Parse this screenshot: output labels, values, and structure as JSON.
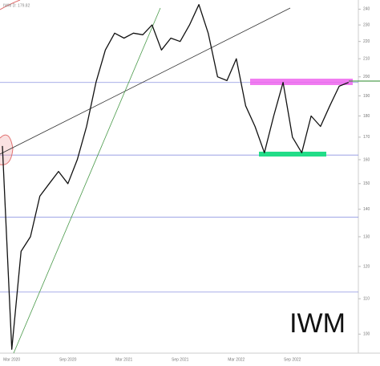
{
  "chart_data": {
    "type": "line",
    "title": "IWM",
    "header": "IWM D: 179.82",
    "categories": [
      null,
      "Mar 2020",
      null,
      null,
      null,
      null,
      null,
      "Sep 2020",
      null,
      null,
      null,
      null,
      null,
      "Mar 2021",
      null,
      null,
      null,
      null,
      null,
      "Sep 2021",
      null,
      null,
      null,
      null,
      null,
      "Mar 2022",
      null,
      null,
      null,
      null,
      null,
      "Sep 2022",
      null,
      null,
      null,
      null,
      null,
      null
    ],
    "series": [
      {
        "name": "IWM",
        "color": "#111111",
        "values": [
          166,
          96,
          125,
          130,
          145,
          150,
          155,
          150,
          160,
          175,
          197,
          215,
          225,
          222,
          225,
          224,
          230,
          215,
          222,
          220,
          230,
          243,
          225,
          200,
          198,
          210,
          185,
          175,
          163,
          180,
          197,
          170,
          163,
          180,
          175,
          185,
          195,
          197
        ]
      }
    ],
    "ylim": [
      95,
      246
    ],
    "log_scale": true,
    "yticks": [
      100,
      110,
      120,
      130,
      140,
      150,
      160,
      170,
      180,
      190,
      200,
      210,
      220,
      230,
      240
    ],
    "levels": [
      197,
      162,
      137,
      112
    ],
    "level_color": "#8c92e0",
    "grid": false
  }
}
